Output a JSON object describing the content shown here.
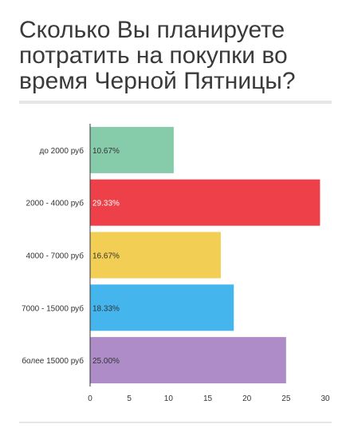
{
  "title_lines": [
    "Сколько Вы планируете",
    "потратить на покупки во",
    "время Черной Пятницы?"
  ],
  "chart_data": {
    "type": "bar",
    "orientation": "horizontal",
    "title": "Сколько Вы планируете потратить на покупки во время Черной Пятницы?",
    "categories": [
      "до 2000 руб",
      "2000 - 4000 руб",
      "4000 - 7000 руб",
      "7000 - 15000 руб",
      "более 15000 руб"
    ],
    "values": [
      10.67,
      29.33,
      16.67,
      18.33,
      25.0
    ],
    "data_labels": [
      "10.67%",
      "29.33%",
      "16.67%",
      "18.33%",
      "25.00%"
    ],
    "colors": [
      "#86ccaa",
      "#ed4049",
      "#f2ce55",
      "#45b5ee",
      "#ae8cc8"
    ],
    "xticks": [
      "0",
      "5",
      "10",
      "15",
      "20",
      "25",
      "30"
    ],
    "xlim": [
      0,
      30
    ],
    "xlabel": "",
    "ylabel": "",
    "grid": false,
    "legend": "none"
  }
}
